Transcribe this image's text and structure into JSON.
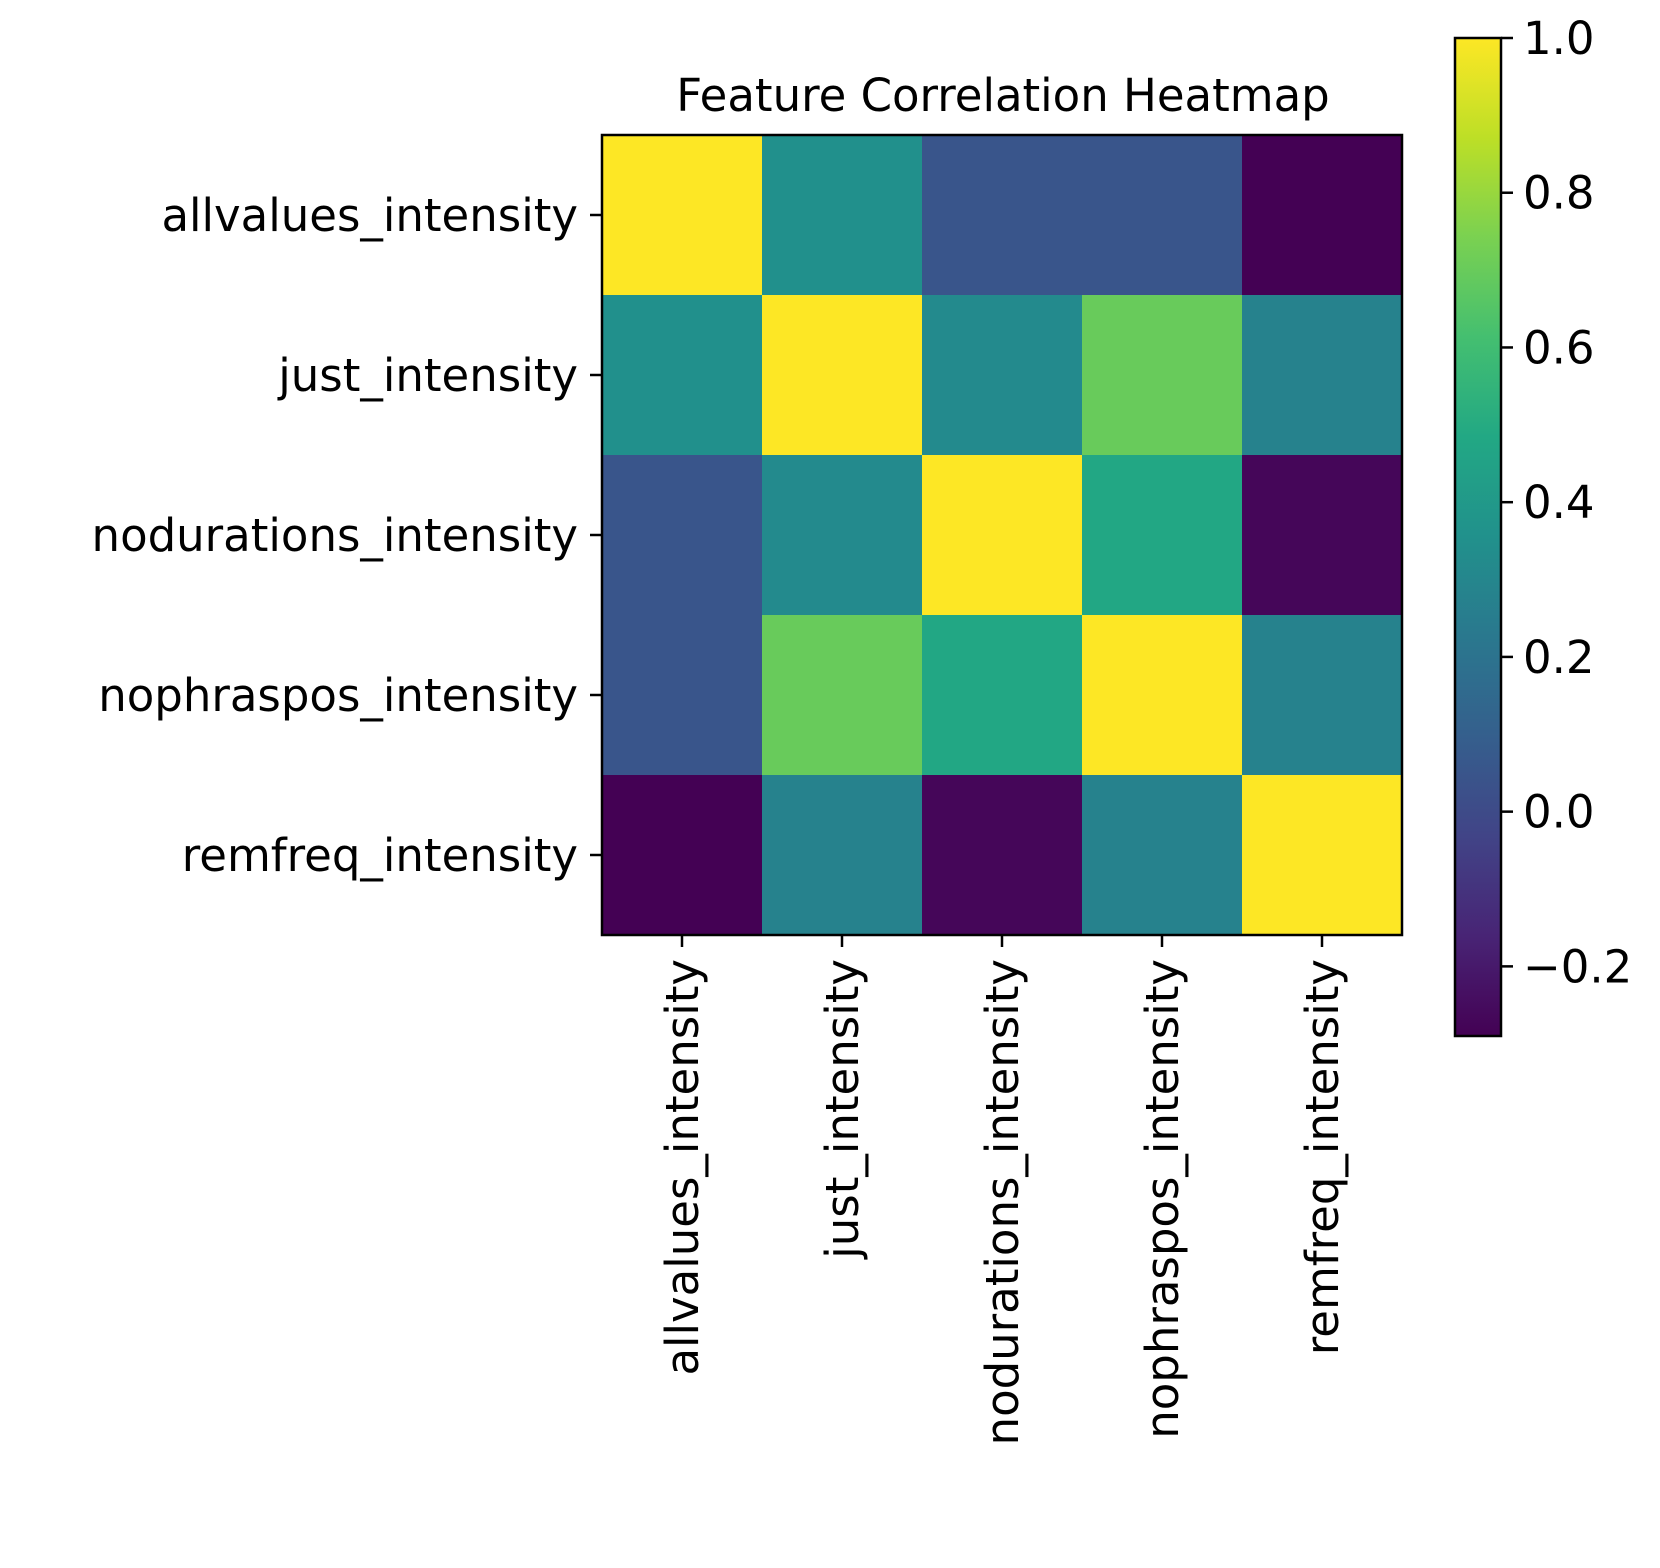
{
  "chart_data": {
    "type": "heatmap",
    "title": "Feature Correlation Heatmap",
    "row_labels": [
      "allvalues_intensity",
      "just_intensity",
      "nodurations_intensity",
      "nophraspos_intensity",
      "remfreq_intensity"
    ],
    "col_labels": [
      "allvalues_intensity",
      "just_intensity",
      "nodurations_intensity",
      "nophraspos_intensity",
      "remfreq_intensity"
    ],
    "matrix": [
      [
        1.0,
        0.35,
        0.05,
        0.05,
        -0.29
      ],
      [
        0.35,
        1.0,
        0.32,
        0.7,
        0.28
      ],
      [
        0.05,
        0.32,
        1.0,
        0.48,
        -0.27
      ],
      [
        0.05,
        0.7,
        0.48,
        1.0,
        0.28
      ],
      [
        -0.29,
        0.28,
        -0.27,
        0.28,
        1.0
      ]
    ],
    "colormap": "viridis",
    "vmin": -0.29,
    "vmax": 1.0,
    "colorbar": {
      "ticks": [
        -0.2,
        0.0,
        0.2,
        0.4,
        0.6,
        0.8,
        1.0
      ],
      "tick_labels": [
        "−0.2",
        "0.0",
        "0.2",
        "0.4",
        "0.6",
        "0.8",
        "1.0"
      ],
      "placement": "right"
    },
    "xlabel": "",
    "ylabel": ""
  }
}
